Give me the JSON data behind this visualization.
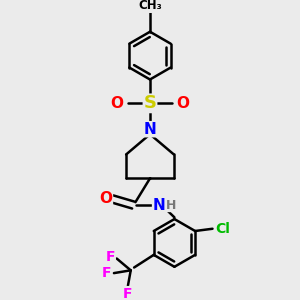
{
  "background_color": "#ebebeb",
  "bond_color": "#000000",
  "atom_colors": {
    "N": "#0000ff",
    "O": "#ff0000",
    "S": "#cccc00",
    "F": "#ff00ff",
    "Cl": "#00bb00",
    "H": "#777777",
    "C": "#000000"
  },
  "line_width": 1.8,
  "font_size": 10,
  "figsize": [
    3.0,
    3.0
  ],
  "dpi": 100
}
